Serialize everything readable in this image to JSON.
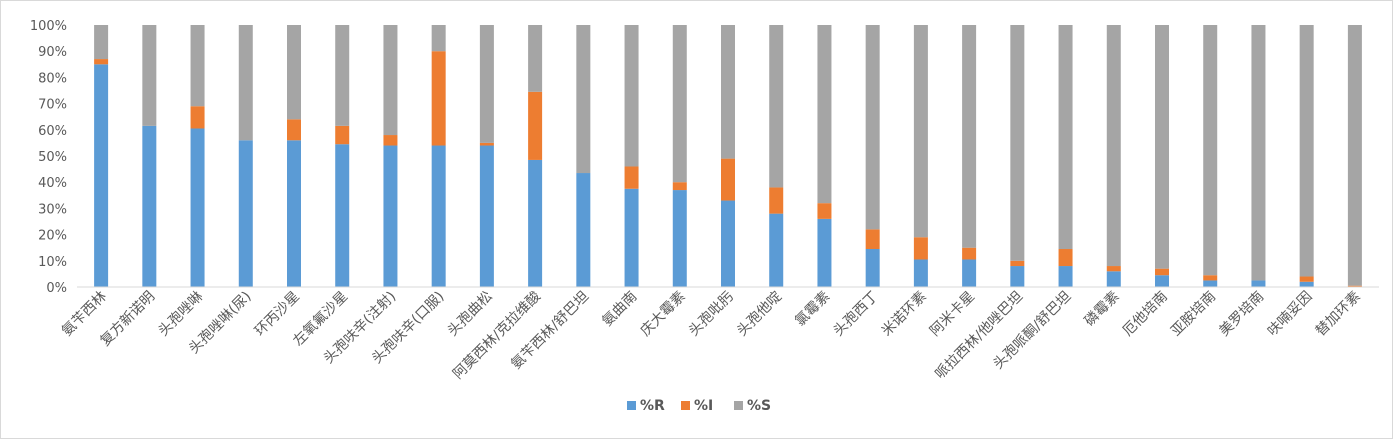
{
  "chart_data": {
    "type": "bar",
    "stacked": true,
    "percent_stacked": true,
    "categories": [
      "氨苄西林",
      "复方新诺明",
      "头孢唑啉",
      "头孢唑啉(尿)",
      "环丙沙星",
      "左氧氟沙星",
      "头孢呋辛(注射)",
      "头孢呋辛(口服)",
      "头孢曲松",
      "阿莫西林/克拉维酸",
      "氨苄西林/舒巴坦",
      "氨曲南",
      "庆大霉素",
      "头孢吡肟",
      "头孢他啶",
      "氯霉素",
      "头孢西丁",
      "米诺环素",
      "阿米卡星",
      "哌拉西林/他唑巴坦",
      "头孢哌酮/舒巴坦",
      "磷霉素",
      "厄他培南",
      "亚胺培南",
      "美罗培南",
      "呋喃妥因",
      "替加环素"
    ],
    "series": [
      {
        "name": "%R",
        "color": "#5b9bd5",
        "values": [
          85,
          61.5,
          60.5,
          56,
          56,
          54.5,
          54,
          54,
          54,
          48.5,
          43.5,
          37.5,
          37,
          33,
          28,
          26,
          14.5,
          10.5,
          10.5,
          8,
          8,
          6,
          4.5,
          2.5,
          2.5,
          2,
          0
        ]
      },
      {
        "name": "%I",
        "color": "#ed7d31",
        "values": [
          2,
          0,
          8.5,
          0,
          8,
          7,
          4,
          36,
          1,
          26,
          0,
          8.5,
          3,
          16,
          10,
          6,
          7.5,
          8.5,
          4.5,
          2,
          6.5,
          2,
          2.5,
          2,
          0,
          2,
          0.5
        ]
      },
      {
        "name": "%S",
        "color": "#a5a5a5",
        "values": [
          13,
          38.5,
          31,
          44,
          36,
          38.5,
          42,
          10,
          45,
          25.5,
          56.5,
          54,
          60,
          51,
          62,
          68,
          78,
          81,
          85,
          90,
          85.5,
          92,
          93,
          95.5,
          97.5,
          96,
          99.5
        ]
      }
    ],
    "ylim": [
      0,
      100
    ],
    "yticks": [
      "0%",
      "10%",
      "20%",
      "30%",
      "40%",
      "50%",
      "60%",
      "70%",
      "80%",
      "90%",
      "100%"
    ],
    "grid": false,
    "legend": "bottom"
  }
}
